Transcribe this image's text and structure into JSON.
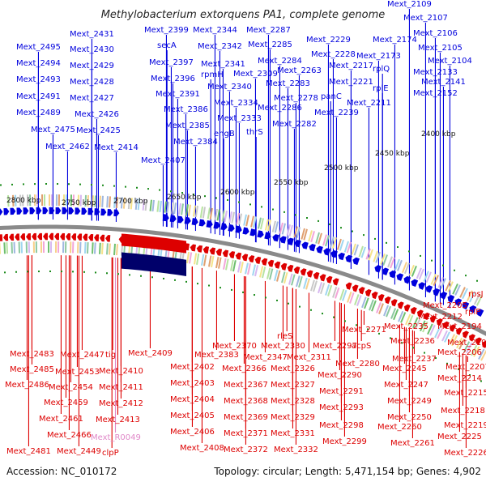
{
  "title": "Methylobacterium extorquens PA1, complete genome",
  "footer": {
    "accession": "Accession: NC_010172",
    "summary": "Topology: circular; Length: 5,471,154 bp; Genes: 4,902"
  },
  "colors": {
    "forward": "#0000dd",
    "reverse": "#dd0000",
    "rna": "#e088c8",
    "backbone": "#8a8a8a",
    "tick": "#1a8a1a"
  },
  "scale_labels": [
    "2800 kbp",
    "2750 kbp",
    "2700 kbp",
    "2650 kbp",
    "2600 kbp",
    "2550 kbp",
    "2500 kbp",
    "2450 kbp",
    "2400 kbp"
  ],
  "forward_genes": [
    "Mext_2109",
    "Mext_2107",
    "Mext_2106",
    "Mext_2105",
    "Mext_2104",
    "Mext_2174",
    "rplQ",
    "Mext_2173",
    "Mext_2133",
    "Mext_2141",
    "rplE",
    "Mext_2152",
    "Mext_2229",
    "Mext_2228",
    "Mext_2217",
    "Mext_2221",
    "panC",
    "Mext_2211",
    "Mext_2239",
    "Mext_2287",
    "Mext_2285",
    "Mext_2284",
    "Mext_2263",
    "Mext_2283",
    "Mext_2278",
    "Mext_2286",
    "Mext_2282",
    "Mext_2344",
    "Mext_2342",
    "Mext_2341",
    "Mext_2340",
    "Mext_2309",
    "Mext_2334",
    "Mext_2333",
    "engB",
    "thrS",
    "Mext_2399",
    "secA",
    "Mext_2397",
    "rpmH",
    "Mext_2396",
    "Mext_2391",
    "Mext_2386",
    "Mext_2385",
    "Mext_2384",
    "Mext_2407",
    "Mext_2431",
    "Mext_2430",
    "Mext_2429",
    "Mext_2428",
    "Mext_2427",
    "Mext_2426",
    "Mext_2425",
    "Mext_2414",
    "Mext_2495",
    "Mext_2494",
    "Mext_2493",
    "Mext_2491",
    "Mext_2489",
    "Mext_2475",
    "Mext_2462"
  ],
  "reverse_genes": [
    "Mext_2483",
    "Mext_2485",
    "Mext_2486",
    "Mext_2447",
    "Mext_2453",
    "Mext_2454",
    "Mext_2459",
    "Mext_2461",
    "Mext_2466",
    "Mext_2449",
    "Mext_2481",
    "tig",
    "Mext_2410",
    "Mext_2411",
    "Mext_2412",
    "Mext_2413",
    "clpP",
    "Mext_2409",
    "Mext_2402",
    "Mext_2403",
    "Mext_2404",
    "Mext_2405",
    "Mext_2406",
    "Mext_2408",
    "Mext_2370",
    "Mext_2383",
    "Mext_2366",
    "Mext_2367",
    "Mext_2368",
    "Mext_2369",
    "Mext_2371",
    "Mext_2372",
    "Mext_2330",
    "Mext_2347",
    "Mext_2326",
    "Mext_2327",
    "Mext_2328",
    "Mext_2329",
    "Mext_2331",
    "Mext_2332",
    "rleS",
    "Mext_2311",
    "Mext_2297",
    "Mext_2290",
    "Mext_2291",
    "Mext_2293",
    "Mext_2298",
    "Mext_2299",
    "Mext_2271",
    "acpS",
    "Mext_2280",
    "Mext_2235",
    "Mext_2236",
    "Mext_2237",
    "Mext_2245",
    "Mext_2247",
    "Mext_2249",
    "Mext_2250",
    "Mext_2260",
    "Mext_2261",
    "Mext_2205",
    "Mext_2212",
    "Mext_2194",
    "Mext_2196",
    "Mext_2206",
    "Mext_2207",
    "Mext_2214",
    "Mext_2215",
    "Mext_2218",
    "Mext_2219",
    "Mext_2225",
    "Mext_2226",
    "rpsJ",
    "rplP"
  ],
  "rna_genes": [
    "Mext_R0049"
  ]
}
